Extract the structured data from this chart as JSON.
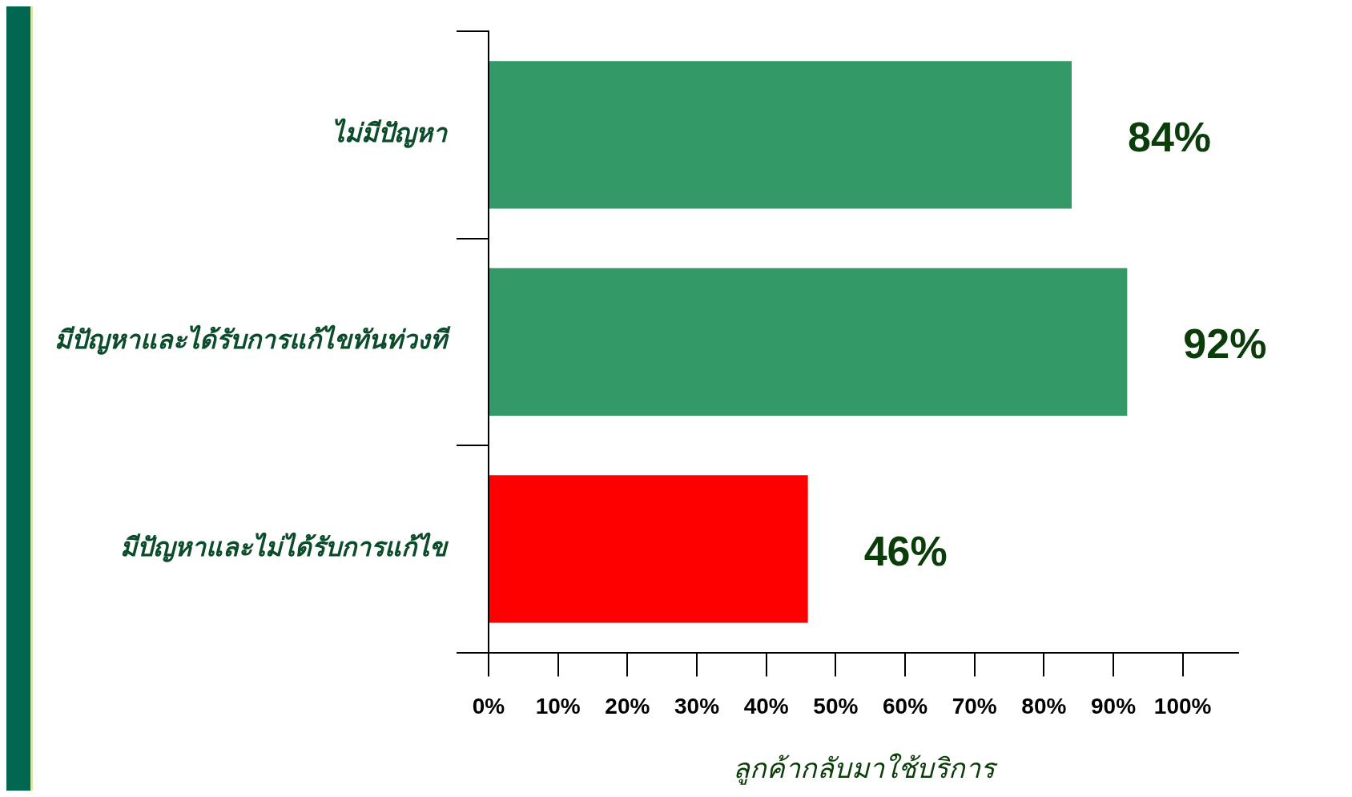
{
  "chart_data": {
    "type": "bar",
    "orientation": "horizontal",
    "xlabel": "ลูกค้ากลับมาใช้บริการ",
    "categories": [
      "ไม่มีปัญหา",
      "มีปัญหาและได้รับการแก้ไขทันท่วงที",
      "มีปัญหาและไม่ได้รับการแก้ไข"
    ],
    "values": [
      84,
      92,
      46
    ],
    "colors": [
      "#339966",
      "#339966",
      "#ff0000"
    ],
    "value_labels": [
      "84%",
      "92%",
      "46%"
    ],
    "xlim": [
      0,
      108
    ],
    "xticks": [
      {
        "value": 0,
        "label": "0%"
      },
      {
        "value": 10,
        "label": "10%"
      },
      {
        "value": 20,
        "label": "20%"
      },
      {
        "value": 30,
        "label": "30%"
      },
      {
        "value": 40,
        "label": "40%"
      },
      {
        "value": 50,
        "label": "50%"
      },
      {
        "value": 60,
        "label": "60%"
      },
      {
        "value": 70,
        "label": "70%"
      },
      {
        "value": 80,
        "label": "80%"
      },
      {
        "value": 90,
        "label": "90%"
      },
      {
        "value": 100,
        "label": "100%"
      }
    ],
    "grid": false,
    "legend": false
  }
}
